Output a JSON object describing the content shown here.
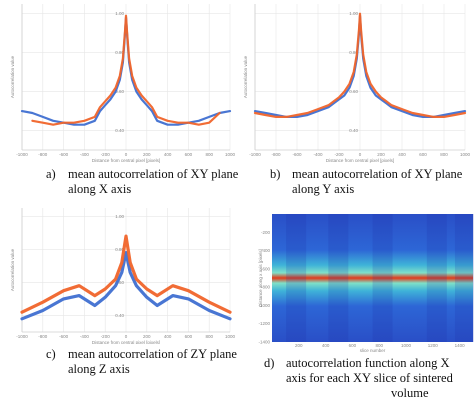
{
  "captions": {
    "a": {
      "letter": "a)",
      "line1": "mean autocorrelation of XY plane",
      "line2": "along X axis"
    },
    "b": {
      "letter": "b)",
      "line1": "mean autocorrelation of XY plane",
      "line2": "along Y axis"
    },
    "c": {
      "letter": "c)",
      "line1": "mean autocorrelation of ZY plane",
      "line2": "along Z axis"
    },
    "d": {
      "letter": "d)",
      "line1": "autocorrelation function along X",
      "line2": "axis for each XY slice of sintered",
      "line3": "volume"
    }
  },
  "colors": {
    "blue": "#3f6fd1",
    "orange": "#f0642a",
    "grid": "#e6e6e6",
    "axis": "#cfcfcf"
  },
  "chart_data": [
    {
      "id": "a",
      "type": "line",
      "xlabel": "Distance from central pixel [pixels]",
      "ylabel": "Autocorrelation value",
      "xlim": [
        -1000,
        1000
      ],
      "ylim": [
        0.3,
        1.05
      ],
      "xticks": [
        -1000,
        -800,
        -600,
        -400,
        -200,
        0,
        200,
        400,
        600,
        800,
        1000
      ],
      "yticks": [
        0.4,
        0.6,
        0.8,
        1.0
      ],
      "ytick_labels": [
        "0.40",
        "0.60",
        "0.80",
        "1.00"
      ],
      "series": [
        {
          "color": "blue",
          "x": [
            -1000,
            -900,
            -800,
            -700,
            -600,
            -500,
            -400,
            -300,
            -250,
            -200,
            -150,
            -100,
            -60,
            -30,
            -10,
            0,
            10,
            30,
            60,
            100,
            150,
            200,
            250,
            300,
            400,
            500,
            600,
            700,
            800,
            900,
            1000
          ],
          "y": [
            0.5,
            0.49,
            0.47,
            0.45,
            0.44,
            0.43,
            0.43,
            0.45,
            0.5,
            0.53,
            0.56,
            0.6,
            0.66,
            0.75,
            0.9,
            0.98,
            0.9,
            0.75,
            0.66,
            0.6,
            0.56,
            0.53,
            0.5,
            0.45,
            0.43,
            0.43,
            0.44,
            0.45,
            0.47,
            0.49,
            0.5
          ]
        },
        {
          "color": "orange",
          "x": [
            -900,
            -800,
            -700,
            -600,
            -500,
            -400,
            -300,
            -250,
            -200,
            -150,
            -100,
            -60,
            -30,
            -10,
            0,
            10,
            30,
            60,
            100,
            150,
            200,
            250,
            300,
            400,
            500,
            600,
            700,
            800,
            900
          ],
          "y": [
            0.45,
            0.44,
            0.43,
            0.44,
            0.44,
            0.45,
            0.47,
            0.52,
            0.55,
            0.58,
            0.62,
            0.68,
            0.77,
            0.91,
            0.99,
            0.91,
            0.77,
            0.68,
            0.62,
            0.58,
            0.55,
            0.52,
            0.47,
            0.45,
            0.44,
            0.44,
            0.43,
            0.44,
            0.49
          ]
        }
      ]
    },
    {
      "id": "b",
      "type": "line",
      "xlabel": "Distance from central pixel [pixels]",
      "ylabel": "Autocorrelation value",
      "xlim": [
        -1000,
        1000
      ],
      "ylim": [
        0.3,
        1.05
      ],
      "xticks": [
        -1000,
        -800,
        -600,
        -400,
        -200,
        0,
        200,
        400,
        600,
        800,
        1000
      ],
      "yticks": [
        0.4,
        0.6,
        0.8,
        1.0
      ],
      "ytick_labels": [
        "0.40",
        "0.60",
        "0.80",
        "1.00"
      ],
      "series": [
        {
          "color": "blue",
          "x": [
            -1000,
            -900,
            -800,
            -700,
            -600,
            -500,
            -400,
            -300,
            -250,
            -200,
            -150,
            -100,
            -60,
            -30,
            -10,
            0,
            10,
            30,
            60,
            100,
            150,
            200,
            250,
            300,
            400,
            500,
            600,
            700,
            800,
            900,
            1000
          ],
          "y": [
            0.5,
            0.49,
            0.48,
            0.47,
            0.47,
            0.48,
            0.5,
            0.52,
            0.54,
            0.56,
            0.58,
            0.62,
            0.68,
            0.77,
            0.9,
            0.99,
            0.9,
            0.77,
            0.68,
            0.62,
            0.58,
            0.56,
            0.54,
            0.52,
            0.5,
            0.48,
            0.47,
            0.47,
            0.48,
            0.49,
            0.5
          ]
        },
        {
          "color": "orange",
          "x": [
            -1000,
            -900,
            -800,
            -700,
            -600,
            -500,
            -400,
            -300,
            -250,
            -200,
            -150,
            -100,
            -60,
            -30,
            -10,
            0,
            10,
            30,
            60,
            100,
            150,
            200,
            250,
            300,
            400,
            500,
            600,
            700,
            800,
            900,
            1000
          ],
          "y": [
            0.49,
            0.48,
            0.47,
            0.47,
            0.48,
            0.49,
            0.51,
            0.53,
            0.55,
            0.57,
            0.6,
            0.64,
            0.7,
            0.79,
            0.92,
            1.0,
            0.92,
            0.79,
            0.7,
            0.64,
            0.6,
            0.57,
            0.55,
            0.53,
            0.51,
            0.49,
            0.48,
            0.47,
            0.47,
            0.48,
            0.49
          ]
        }
      ]
    },
    {
      "id": "c",
      "type": "line",
      "xlabel": "Distance from central pixel [pixels]",
      "ylabel": "Autocorrelation value",
      "xlim": [
        -1000,
        1000
      ],
      "ylim": [
        0.3,
        1.05
      ],
      "xticks": [
        -1000,
        -800,
        -600,
        -400,
        -200,
        0,
        200,
        400,
        600,
        800,
        1000
      ],
      "yticks": [
        0.4,
        0.6,
        0.8,
        1.0
      ],
      "ytick_labels": [
        "0.40",
        "0.60",
        "0.80",
        "1.00"
      ],
      "series": [
        {
          "color": "blue",
          "x": [
            -1000,
            -800,
            -600,
            -450,
            -300,
            -200,
            -100,
            -40,
            0,
            40,
            100,
            200,
            300,
            450,
            600,
            800,
            1000
          ],
          "y": [
            0.38,
            0.43,
            0.5,
            0.52,
            0.46,
            0.51,
            0.58,
            0.66,
            0.78,
            0.66,
            0.58,
            0.51,
            0.46,
            0.52,
            0.5,
            0.43,
            0.38
          ]
        },
        {
          "color": "orange",
          "x": [
            -1000,
            -800,
            -600,
            -450,
            -300,
            -200,
            -100,
            -40,
            0,
            40,
            100,
            200,
            300,
            450,
            600,
            800,
            1000
          ],
          "y": [
            0.42,
            0.48,
            0.55,
            0.58,
            0.52,
            0.56,
            0.62,
            0.72,
            0.88,
            0.72,
            0.62,
            0.56,
            0.52,
            0.58,
            0.55,
            0.48,
            0.42
          ]
        }
      ]
    },
    {
      "id": "d",
      "type": "heatmap",
      "xlabel": "slice number",
      "ylabel": "Distance along x axis [pixels]",
      "xticks": [
        200,
        400,
        600,
        800,
        1000,
        1200,
        1400
      ],
      "yticks": [
        -1400,
        -1200,
        -1000,
        -800,
        -600,
        -400,
        -200
      ],
      "xlim": [
        0,
        1500
      ],
      "ylim": [
        -1400,
        0
      ]
    }
  ]
}
